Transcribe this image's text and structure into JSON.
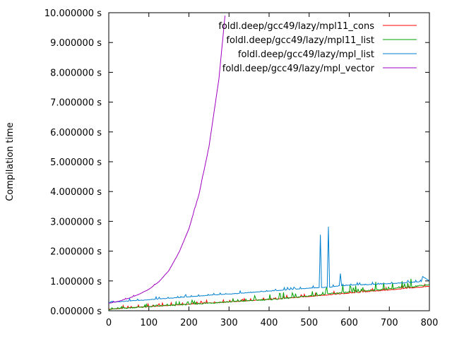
{
  "chart_data": {
    "type": "line",
    "title": "",
    "xlabel": "",
    "ylabel": "Compilation time",
    "xlim": [
      0,
      800
    ],
    "ylim": [
      0,
      10
    ],
    "x_ticks": [
      0,
      100,
      200,
      300,
      400,
      500,
      600,
      700,
      800
    ],
    "x_tick_labels": [
      "0",
      "100",
      "200",
      "300",
      "400",
      "500",
      "600",
      "700",
      "800"
    ],
    "y_ticks": [
      0,
      1,
      2,
      3,
      4,
      5,
      6,
      7,
      8,
      9,
      10
    ],
    "y_tick_labels": [
      "0.000000 s",
      "1.000000 s",
      "2.000000 s",
      "3.000000 s",
      "4.000000 s",
      "5.000000 s",
      "6.000000 s",
      "7.000000 s",
      "8.000000 s",
      "9.000000 s",
      "10.000000 s"
    ],
    "grid": false,
    "legend_position": "top-right",
    "series": [
      {
        "name": "foldl.deep/gcc49/lazy/mpl11_cons",
        "color": "#ff0000",
        "x": [
          0,
          50,
          100,
          150,
          200,
          250,
          300,
          350,
          400,
          450,
          500,
          550,
          600,
          650,
          700,
          750,
          800
        ],
        "y": [
          0.05,
          0.1,
          0.14,
          0.18,
          0.22,
          0.26,
          0.3,
          0.34,
          0.38,
          0.43,
          0.48,
          0.54,
          0.59,
          0.65,
          0.7,
          0.76,
          0.82
        ]
      },
      {
        "name": "foldl.deep/gcc49/lazy/mpl11_list",
        "color": "#00a000",
        "x": [
          0,
          50,
          100,
          150,
          200,
          250,
          300,
          350,
          400,
          450,
          500,
          550,
          600,
          650,
          700,
          750,
          800
        ],
        "y": [
          0.05,
          0.1,
          0.14,
          0.18,
          0.22,
          0.26,
          0.3,
          0.34,
          0.38,
          0.43,
          0.5,
          0.57,
          0.62,
          0.68,
          0.74,
          0.8,
          0.88
        ]
      },
      {
        "name": "foldl.deep/gcc49/lazy/mpl_list",
        "color": "#0080d0",
        "x": [
          0,
          50,
          100,
          150,
          200,
          250,
          300,
          350,
          400,
          450,
          500,
          525,
          528,
          531,
          545,
          548,
          551,
          575,
          578,
          581,
          600,
          650,
          700,
          750,
          780,
          783,
          800
        ],
        "y": [
          0.28,
          0.33,
          0.37,
          0.42,
          0.47,
          0.52,
          0.56,
          0.61,
          0.66,
          0.71,
          0.76,
          0.78,
          2.55,
          0.78,
          0.79,
          2.82,
          0.79,
          0.84,
          1.25,
          0.84,
          0.86,
          0.88,
          0.91,
          0.95,
          0.98,
          1.15,
          1.0
        ]
      },
      {
        "name": "foldl.deep/gcc49/lazy/mpl_vector",
        "color": "#a000c0",
        "x": [
          0,
          25,
          50,
          75,
          100,
          125,
          150,
          175,
          200,
          225,
          250,
          275,
          290
        ],
        "y": [
          0.25,
          0.32,
          0.42,
          0.55,
          0.72,
          0.97,
          1.35,
          1.95,
          2.75,
          3.9,
          5.5,
          7.8,
          9.9
        ]
      }
    ]
  }
}
